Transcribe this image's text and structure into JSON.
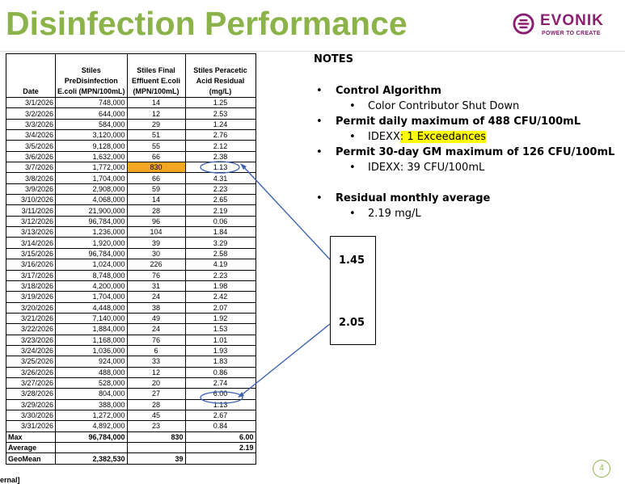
{
  "title": "Disinfection Performance",
  "logo": {
    "name": "EVONIK",
    "tagline": "POWER TO CREATE"
  },
  "table": {
    "headers": {
      "date": "Date",
      "pre_l1": "Stiles",
      "pre_l2": "PreDisinfection",
      "pre_l3": "E.coli (MPN/100mL)",
      "fin_l1": "Stiles Final",
      "fin_l2": "Effluent E.coli",
      "fin_l3": "(MPN/100mL)",
      "acid_l1": "Stiles Peracetic",
      "acid_l2": "Acid Residual",
      "acid_l3": "(mg/L)"
    },
    "rows": [
      {
        "date": "3/1/2026",
        "pre": "748,000",
        "fin": "14",
        "acid": "1.25"
      },
      {
        "date": "3/2/2026",
        "pre": "644,000",
        "fin": "12",
        "acid": "2.53"
      },
      {
        "date": "3/3/2026",
        "pre": "584,000",
        "fin": "29",
        "acid": "1.24"
      },
      {
        "date": "3/4/2026",
        "pre": "3,120,000",
        "fin": "51",
        "acid": "2.76"
      },
      {
        "date": "3/5/2026",
        "pre": "9,128,000",
        "fin": "55",
        "acid": "2.12"
      },
      {
        "date": "3/6/2026",
        "pre": "1,632,000",
        "fin": "66",
        "acid": "2.38"
      },
      {
        "date": "3/7/2026",
        "pre": "1,772,000",
        "fin": "830",
        "acid": "1.13"
      },
      {
        "date": "3/8/2026",
        "pre": "1,704,000",
        "fin": "66",
        "acid": "4.31"
      },
      {
        "date": "3/9/2026",
        "pre": "2,908,000",
        "fin": "59",
        "acid": "2.23"
      },
      {
        "date": "3/10/2026",
        "pre": "4,068,000",
        "fin": "14",
        "acid": "2.65"
      },
      {
        "date": "3/11/2026",
        "pre": "21,900,000",
        "fin": "28",
        "acid": "2.19"
      },
      {
        "date": "3/12/2026",
        "pre": "96,784,000",
        "fin": "96",
        "acid": "0.06"
      },
      {
        "date": "3/13/2026",
        "pre": "1,236,000",
        "fin": "104",
        "acid": "1.84"
      },
      {
        "date": "3/14/2026",
        "pre": "1,920,000",
        "fin": "39",
        "acid": "3.29"
      },
      {
        "date": "3/15/2026",
        "pre": "96,784,000",
        "fin": "30",
        "acid": "2.58"
      },
      {
        "date": "3/16/2026",
        "pre": "1,024,000",
        "fin": "226",
        "acid": "4.19"
      },
      {
        "date": "3/17/2026",
        "pre": "8,748,000",
        "fin": "76",
        "acid": "2.23"
      },
      {
        "date": "3/18/2026",
        "pre": "4,200,000",
        "fin": "31",
        "acid": "1.98"
      },
      {
        "date": "3/19/2026",
        "pre": "1,704,000",
        "fin": "24",
        "acid": "2.42"
      },
      {
        "date": "3/20/2026",
        "pre": "4,448,000",
        "fin": "38",
        "acid": "2.07"
      },
      {
        "date": "3/21/2026",
        "pre": "7,140,000",
        "fin": "49",
        "acid": "1.92"
      },
      {
        "date": "3/22/2026",
        "pre": "1,884,000",
        "fin": "24",
        "acid": "1.53"
      },
      {
        "date": "3/23/2026",
        "pre": "1,168,000",
        "fin": "76",
        "acid": "1.01"
      },
      {
        "date": "3/24/2026",
        "pre": "1,036,000",
        "fin": "6",
        "acid": "1.93"
      },
      {
        "date": "3/25/2026",
        "pre": "924,000",
        "fin": "33",
        "acid": "1.83"
      },
      {
        "date": "3/26/2026",
        "pre": "488,000",
        "fin": "12",
        "acid": "0.86"
      },
      {
        "date": "3/27/2026",
        "pre": "528,000",
        "fin": "20",
        "acid": "2.74"
      },
      {
        "date": "3/28/2026",
        "pre": "804,000",
        "fin": "27",
        "acid": "6.00"
      },
      {
        "date": "3/29/2026",
        "pre": "388,000",
        "fin": "28",
        "acid": "1.13"
      },
      {
        "date": "3/30/2026",
        "pre": "1,272,000",
        "fin": "45",
        "acid": "2.67"
      },
      {
        "date": "3/31/2026",
        "pre": "4,892,000",
        "fin": "23",
        "acid": "0.84"
      }
    ],
    "summary": {
      "max": {
        "label": "Max",
        "pre": "96,784,000",
        "fin": "830",
        "acid": "6.00"
      },
      "average": {
        "label": "Average",
        "pre": "",
        "fin": "",
        "acid": "2.19"
      },
      "geomean": {
        "label": "GeoMean",
        "pre": "2,382,530",
        "fin": "39",
        "acid": ""
      }
    },
    "highlight_color": "#f5a623"
  },
  "notes": {
    "title": "NOTES",
    "control_algorithm": "Control Algorithm",
    "color_contributor": "Color Contributor Shut Down",
    "permit_daily": "Permit daily maximum of 488 CFU/100mL",
    "idexx_label": "IDEXX",
    "idexx_daily_value": ": 1 Exceedances",
    "permit_30day": "Permit 30-day GM maximum of 126 CFU/100mL",
    "idexx_30day": "IDEXX: 39 CFU/100mL",
    "residual_avg": "Residual monthly average",
    "residual_value": "2.19 mg/L"
  },
  "callout": {
    "value_top": "1.45",
    "value_bottom": "2.05"
  },
  "page_number": "4",
  "footer_fragment": "ernal]",
  "colors": {
    "title_green": "#8bb34a",
    "brand_purple": "#8a1e71",
    "annotation_blue": "#3c63b0",
    "highlight_yellow": "#ffff00"
  }
}
